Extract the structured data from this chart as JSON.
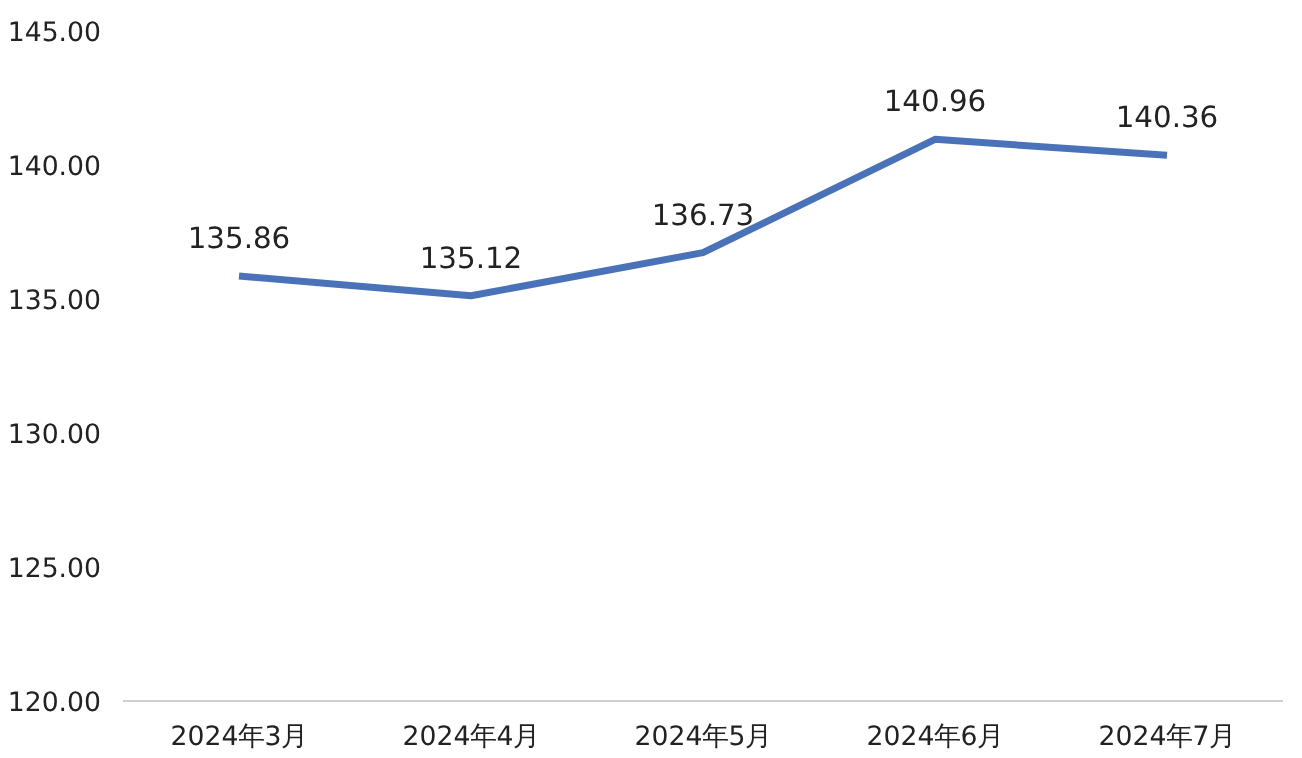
{
  "chart_data": {
    "type": "line",
    "categories": [
      "2024年3月",
      "2024年4月",
      "2024年5月",
      "2024年6月",
      "2024年7月"
    ],
    "series": [
      {
        "color": "#4a72b8",
        "values": [
          135.86,
          135.12,
          136.73,
          140.96,
          140.36
        ]
      }
    ],
    "value_labels": [
      "135.86",
      "135.12",
      "136.73",
      "140.96",
      "140.36"
    ],
    "ylim": [
      120,
      145
    ],
    "yticks": [
      {
        "value": 120,
        "label": "120.00"
      },
      {
        "value": 125,
        "label": "125.00"
      },
      {
        "value": 130,
        "label": "130.00"
      },
      {
        "value": 135,
        "label": "135.00"
      },
      {
        "value": 140,
        "label": "140.00"
      },
      {
        "value": 145,
        "label": "145.00"
      }
    ],
    "grid": false,
    "marker": "none",
    "line_style": "solid"
  }
}
